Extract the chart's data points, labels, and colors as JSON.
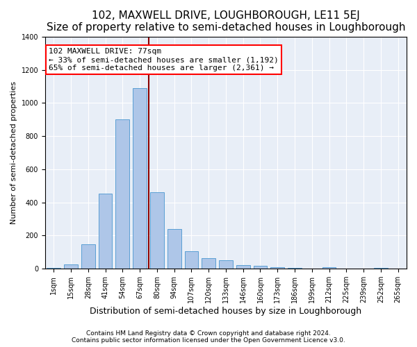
{
  "title": "102, MAXWELL DRIVE, LOUGHBOROUGH, LE11 5EJ",
  "subtitle": "Size of property relative to semi-detached houses in Loughborough",
  "xlabel": "Distribution of semi-detached houses by size in Loughborough",
  "ylabel": "Number of semi-detached properties",
  "categories": [
    "1sqm",
    "15sqm",
    "28sqm",
    "41sqm",
    "54sqm",
    "67sqm",
    "80sqm",
    "94sqm",
    "107sqm",
    "120sqm",
    "133sqm",
    "146sqm",
    "160sqm",
    "173sqm",
    "186sqm",
    "199sqm",
    "212sqm",
    "225sqm",
    "239sqm",
    "252sqm",
    "265sqm"
  ],
  "values": [
    5,
    28,
    148,
    455,
    900,
    1090,
    460,
    238,
    107,
    65,
    52,
    20,
    18,
    10,
    5,
    2,
    10,
    2,
    0,
    5,
    2
  ],
  "bar_color": "#aec6e8",
  "bar_edge_color": "#5a9fd4",
  "vline_pos": 5.5,
  "vline_color": "#8b0000",
  "annotation_text": "102 MAXWELL DRIVE: 77sqm\n← 33% of semi-detached houses are smaller (1,192)\n65% of semi-detached houses are larger (2,361) →",
  "annotation_box_color": "white",
  "annotation_box_edge_color": "red",
  "ylim": [
    0,
    1400
  ],
  "yticks": [
    0,
    200,
    400,
    600,
    800,
    1000,
    1200,
    1400
  ],
  "background_color": "#e8eef7",
  "footer_text": "Contains HM Land Registry data © Crown copyright and database right 2024.\nContains public sector information licensed under the Open Government Licence v3.0.",
  "title_fontsize": 11,
  "subtitle_fontsize": 10,
  "xlabel_fontsize": 9,
  "ylabel_fontsize": 8,
  "tick_fontsize": 7,
  "annotation_fontsize": 8,
  "footer_fontsize": 6.5
}
